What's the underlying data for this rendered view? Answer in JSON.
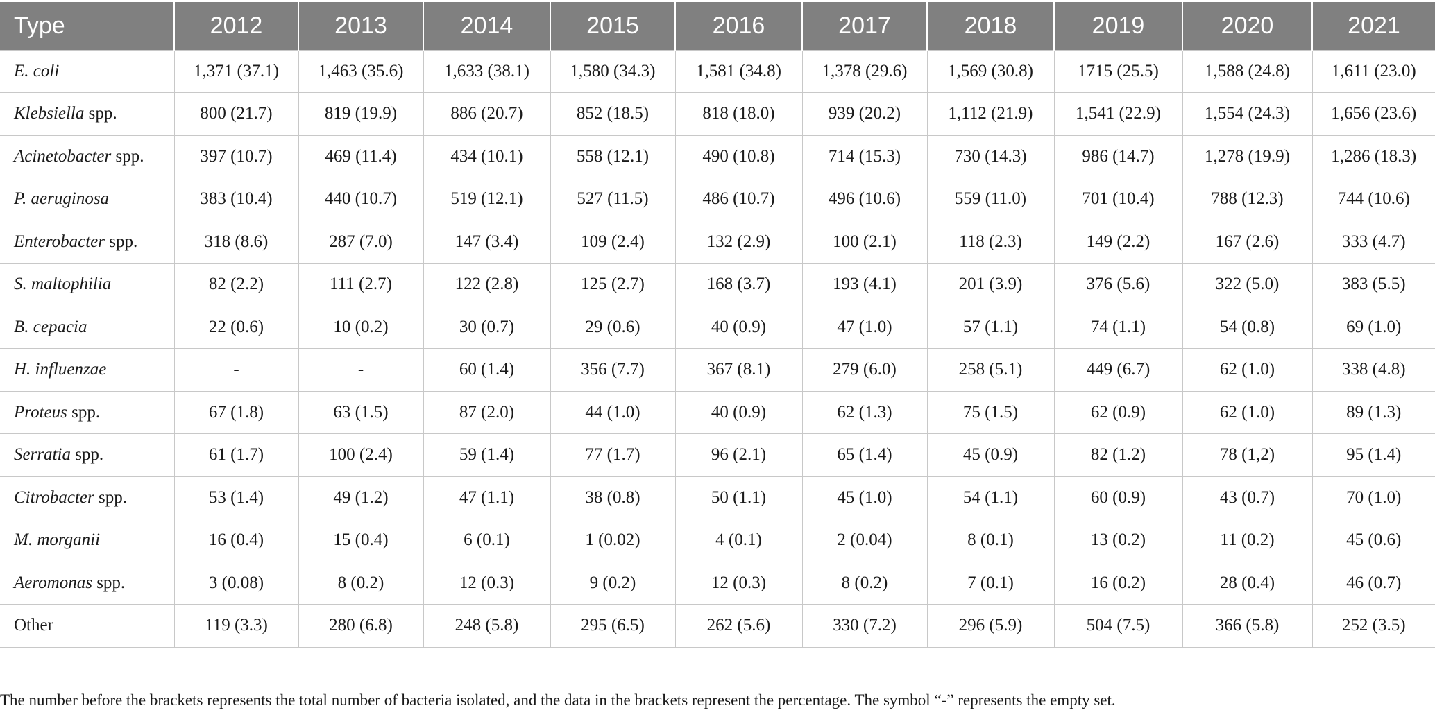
{
  "table": {
    "headers": [
      "Type",
      "2012",
      "2013",
      "2014",
      "2015",
      "2016",
      "2017",
      "2018",
      "2019",
      "2020",
      "2021"
    ],
    "rows": [
      {
        "italic": "E. coli",
        "suffix": "",
        "values": [
          "1,371 (37.1)",
          "1,463 (35.6)",
          "1,633 (38.1)",
          "1,580 (34.3)",
          "1,581 (34.8)",
          "1,378 (29.6)",
          "1,569 (30.8)",
          "1715 (25.5)",
          "1,588 (24.8)",
          "1,611 (23.0)"
        ]
      },
      {
        "italic": "Klebsiella",
        "suffix": " spp.",
        "values": [
          "800 (21.7)",
          "819 (19.9)",
          "886 (20.7)",
          "852 (18.5)",
          "818 (18.0)",
          "939 (20.2)",
          "1,112 (21.9)",
          "1,541 (22.9)",
          "1,554 (24.3)",
          "1,656 (23.6)"
        ]
      },
      {
        "italic": "Acinetobacter",
        "suffix": " spp.",
        "values": [
          "397 (10.7)",
          "469 (11.4)",
          "434 (10.1)",
          "558 (12.1)",
          "490 (10.8)",
          "714 (15.3)",
          "730 (14.3)",
          "986 (14.7)",
          "1,278 (19.9)",
          "1,286 (18.3)"
        ]
      },
      {
        "italic": "P. aeruginosa",
        "suffix": "",
        "values": [
          "383 (10.4)",
          "440 (10.7)",
          "519 (12.1)",
          "527 (11.5)",
          "486 (10.7)",
          "496 (10.6)",
          "559 (11.0)",
          "701 (10.4)",
          "788 (12.3)",
          "744 (10.6)"
        ]
      },
      {
        "italic": "Enterobacter",
        "suffix": " spp.",
        "values": [
          "318 (8.6)",
          "287 (7.0)",
          "147 (3.4)",
          "109 (2.4)",
          "132 (2.9)",
          "100 (2.1)",
          "118 (2.3)",
          "149 (2.2)",
          "167 (2.6)",
          "333 (4.7)"
        ]
      },
      {
        "italic": "S. maltophilia",
        "suffix": "",
        "values": [
          "82 (2.2)",
          "111 (2.7)",
          "122 (2.8)",
          "125 (2.7)",
          "168 (3.7)",
          "193 (4.1)",
          "201 (3.9)",
          "376 (5.6)",
          "322 (5.0)",
          "383 (5.5)"
        ]
      },
      {
        "italic": "B. cepacia",
        "suffix": "",
        "values": [
          "22 (0.6)",
          "10 (0.2)",
          "30 (0.7)",
          "29 (0.6)",
          "40 (0.9)",
          "47 (1.0)",
          "57 (1.1)",
          "74 (1.1)",
          "54 (0.8)",
          "69 (1.0)"
        ]
      },
      {
        "italic": "H. influenzae",
        "suffix": "",
        "values": [
          "-",
          "-",
          "60 (1.4)",
          "356 (7.7)",
          "367 (8.1)",
          "279 (6.0)",
          "258 (5.1)",
          "449 (6.7)",
          "62 (1.0)",
          "338 (4.8)"
        ]
      },
      {
        "italic": "Proteus",
        "suffix": " spp.",
        "values": [
          "67 (1.8)",
          "63 (1.5)",
          "87 (2.0)",
          "44 (1.0)",
          "40 (0.9)",
          "62 (1.3)",
          "75 (1.5)",
          "62 (0.9)",
          "62 (1.0)",
          "89 (1.3)"
        ]
      },
      {
        "italic": "Serratia",
        "suffix": " spp.",
        "values": [
          "61 (1.7)",
          "100 (2.4)",
          "59 (1.4)",
          "77 (1.7)",
          "96 (2.1)",
          "65 (1.4)",
          "45 (0.9)",
          "82 (1.2)",
          "78 (1,2)",
          "95 (1.4)"
        ]
      },
      {
        "italic": "Citrobacter",
        "suffix": " spp.",
        "values": [
          "53 (1.4)",
          "49 (1.2)",
          "47 (1.1)",
          "38 (0.8)",
          "50 (1.1)",
          "45 (1.0)",
          "54 (1.1)",
          "60 (0.9)",
          "43 (0.7)",
          "70 (1.0)"
        ]
      },
      {
        "italic": "M. morganii",
        "suffix": "",
        "values": [
          "16 (0.4)",
          "15 (0.4)",
          "6 (0.1)",
          "1 (0.02)",
          "4 (0.1)",
          "2 (0.04)",
          "8 (0.1)",
          "13 (0.2)",
          "11 (0.2)",
          "45 (0.6)"
        ]
      },
      {
        "italic": "Aeromonas",
        "suffix": " spp.",
        "values": [
          "3 (0.08)",
          "8 (0.2)",
          "12 (0.3)",
          "9 (0.2)",
          "12 (0.3)",
          "8 (0.2)",
          "7 (0.1)",
          "16 (0.2)",
          "28 (0.4)",
          "46 (0.7)"
        ]
      },
      {
        "italic": "",
        "suffix": "Other",
        "values": [
          "119 (3.3)",
          "280 (6.8)",
          "248 (5.8)",
          "295 (6.5)",
          "262 (5.6)",
          "330 (7.2)",
          "296 (5.9)",
          "504 (7.5)",
          "366 (5.8)",
          "252 (3.5)"
        ]
      }
    ]
  },
  "footnote": "The number before the brackets represents the total number of bacteria isolated, and the data in the brackets represent the percentage. The symbol “-” represents the empty set.",
  "colors": {
    "header_bg": "#808080",
    "header_text": "#ffffff",
    "grid": "#c8c8c8"
  }
}
